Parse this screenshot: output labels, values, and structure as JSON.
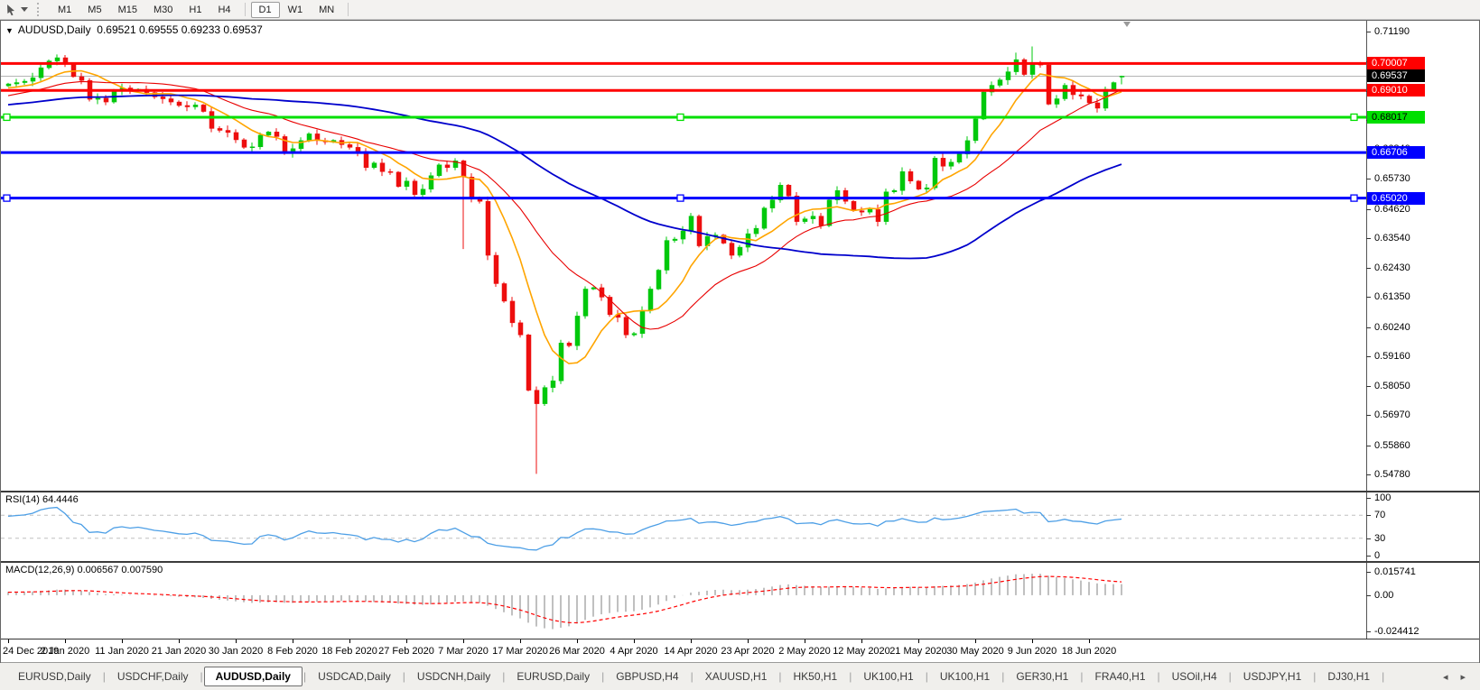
{
  "toolbar": {
    "timeframes": [
      "M1",
      "M5",
      "M15",
      "M30",
      "H1",
      "H4",
      "D1",
      "W1",
      "MN"
    ],
    "active": "D1"
  },
  "chart": {
    "collapse_icon": "▼",
    "symbol_timeframe": "AUDUSD,Daily",
    "ohlc_text": "0.69521 0.69555 0.69233 0.69537"
  },
  "panes": {
    "rsi_label": "RSI(14) 64.4446",
    "macd_label": "MACD(12,26,9) 0.006567 0.007590"
  },
  "tabbar": {
    "tabs": [
      "EURUSD,Daily",
      "USDCHF,Daily",
      "AUDUSD,Daily",
      "USDCAD,Daily",
      "USDCNH,Daily",
      "EURUSD,Daily",
      "GBPUSD,H4",
      "XAUUSD,H1",
      "HK50,H1",
      "UK100,H1",
      "UK100,H1",
      "GER30,H1",
      "FRA40,H1",
      "USOil,H4",
      "USDJPY,H1",
      "DJ30,H1"
    ],
    "active_index": 2,
    "scroll_left_icon": "◂",
    "scroll_right_icon": "▸"
  },
  "chart_data": {
    "type": "candlestick",
    "symbol": "AUDUSD",
    "timeframe": "Daily",
    "visible_range": {
      "start": "24 Dec 2019",
      "end": "24 Jun 2020"
    },
    "last_bar": {
      "open": 0.69521,
      "high": 0.69555,
      "low": 0.69233,
      "close": 0.69537
    },
    "candle_colors": {
      "up": "#00C80C",
      "down": "#ED0E0E"
    },
    "y_axis": {
      "max": 0.7119,
      "min": 0.5478,
      "ticks": [
        "0.71190",
        "0.70080",
        "0.69000",
        "0.67920",
        "0.66840",
        "0.65730",
        "0.64620",
        "0.63540",
        "0.62430",
        "0.61350",
        "0.60240",
        "0.59160",
        "0.58050",
        "0.56970",
        "0.55860",
        "0.54780"
      ]
    },
    "x_axis_labels": [
      "24 Dec 2019",
      "2 Jan 2020",
      "11 Jan 2020",
      "21 Jan 2020",
      "30 Jan 2020",
      "8 Feb 2020",
      "18 Feb 2020",
      "27 Feb 2020",
      "7 Mar 2020",
      "17 Mar 2020",
      "26 Mar 2020",
      "4 Apr 2020",
      "14 Apr 2020",
      "23 Apr 2020",
      "2 May 2020",
      "12 May 2020",
      "21 May 2020",
      "30 May 2020",
      "9 Jun 2020",
      "18 Jun 2020"
    ],
    "pre_closes": [
      0.672,
      0.6735,
      0.675,
      0.6742,
      0.673,
      0.6755,
      0.677,
      0.6785,
      0.6775,
      0.679,
      0.6805,
      0.682,
      0.681,
      0.6825,
      0.684,
      0.6832,
      0.6845,
      0.6838,
      0.685,
      0.6842,
      0.6835,
      0.6848,
      0.686,
      0.6852,
      0.684,
      0.683,
      0.6845,
      0.6858,
      0.685,
      0.6862,
      0.6855,
      0.684,
      0.6832,
      0.6845,
      0.6838,
      0.6826,
      0.6815,
      0.6828,
      0.682,
      0.6808,
      0.6798,
      0.681,
      0.6825,
      0.6838,
      0.685,
      0.6862,
      0.6855,
      0.687,
      0.6882,
      0.6875,
      0.6888,
      0.69,
      0.6893,
      0.6905,
      0.6898,
      0.691,
      0.6902,
      0.6915,
      0.6908,
      0.6918
    ],
    "closes": [
      0.6925,
      0.693,
      0.6935,
      0.6948,
      0.6985,
      0.701,
      0.7022,
      0.6998,
      0.6952,
      0.6938,
      0.6868,
      0.6872,
      0.6858,
      0.69,
      0.691,
      0.6898,
      0.6905,
      0.6893,
      0.6877,
      0.687,
      0.6858,
      0.6845,
      0.684,
      0.6847,
      0.6823,
      0.676,
      0.6753,
      0.6745,
      0.6718,
      0.669,
      0.6692,
      0.6735,
      0.6747,
      0.673,
      0.667,
      0.6685,
      0.6715,
      0.674,
      0.6715,
      0.671,
      0.6716,
      0.67,
      0.669,
      0.6675,
      0.6615,
      0.6632,
      0.66,
      0.6598,
      0.6545,
      0.6565,
      0.6515,
      0.6535,
      0.6585,
      0.6625,
      0.6615,
      0.664,
      0.658,
      0.65,
      0.649,
      0.629,
      0.6185,
      0.612,
      0.604,
      0.5995,
      0.579,
      0.574,
      0.58,
      0.5825,
      0.5965,
      0.5955,
      0.6065,
      0.6165,
      0.617,
      0.6135,
      0.607,
      0.606,
      0.5995,
      0.6,
      0.6085,
      0.6165,
      0.6235,
      0.6345,
      0.635,
      0.638,
      0.6435,
      0.6325,
      0.636,
      0.6365,
      0.6335,
      0.629,
      0.632,
      0.637,
      0.639,
      0.6465,
      0.6495,
      0.655,
      0.651,
      0.6415,
      0.6425,
      0.6435,
      0.64,
      0.6495,
      0.653,
      0.649,
      0.6455,
      0.645,
      0.646,
      0.6415,
      0.6525,
      0.653,
      0.66,
      0.6565,
      0.6535,
      0.654,
      0.665,
      0.662,
      0.6635,
      0.6665,
      0.6715,
      0.6795,
      0.6895,
      0.692,
      0.694,
      0.697,
      0.7015,
      0.696,
      0.7,
      0.6995,
      0.685,
      0.687,
      0.692,
      0.6885,
      0.688,
      0.6855,
      0.6835,
      0.6905,
      0.693,
      0.69537
    ],
    "wick_overrides": {
      "6": {
        "high": 0.7034
      },
      "56": {
        "low": 0.6313
      },
      "65": {
        "low": 0.548
      },
      "124": {
        "high": 0.7041
      },
      "126": {
        "high": 0.7064
      }
    },
    "horizontal_lines": [
      {
        "price": 0.70007,
        "label": "0.70007",
        "color": "#FF0000",
        "width": 3,
        "selected": false,
        "tag_text": "#FFFFFF"
      },
      {
        "price": 0.6901,
        "label": "0.69010",
        "color": "#FF0000",
        "width": 3,
        "selected": false,
        "tag_text": "#FFFFFF"
      },
      {
        "price": 0.68017,
        "label": "0.68017",
        "color": "#00DF00",
        "width": 3,
        "selected": true,
        "tag_text": "#000000"
      },
      {
        "price": 0.66706,
        "label": "0.66706",
        "color": "#0000FF",
        "width": 3,
        "selected": false,
        "tag_text": "#FFFFFF"
      },
      {
        "price": 0.6502,
        "label": "0.65020",
        "color": "#0000FF",
        "width": 3,
        "selected": true,
        "tag_text": "#FFFFFF"
      }
    ],
    "current_price": {
      "value": 0.69537,
      "label": "0.69537",
      "line_color": "#B4B4B4",
      "tag_color": "#000000",
      "tag_text": "#FFFFFF"
    },
    "moving_averages": [
      {
        "period": 8,
        "color": "#FFA500",
        "stroke": 1.6
      },
      {
        "period": 20,
        "color": "#E80000",
        "stroke": 1.1
      },
      {
        "period": 55,
        "color": "#0000CC",
        "stroke": 1.8
      }
    ],
    "rsi": {
      "period": 14,
      "value": 64.4446,
      "color": "#4D9FE6",
      "levels": [
        70,
        30
      ],
      "ticks": [
        "100",
        "70",
        "30",
        "0"
      ],
      "range": [
        0,
        100
      ]
    },
    "macd": {
      "fast": 12,
      "slow": 26,
      "signal": 9,
      "value": 0.006567,
      "signal_value": 0.00759,
      "hist_color": "#C0C0C0",
      "signal_color": "#FF0000",
      "ticks": [
        "0.015741",
        "0.00",
        "-0.024412"
      ],
      "range": [
        -0.024412,
        0.015741
      ]
    }
  }
}
